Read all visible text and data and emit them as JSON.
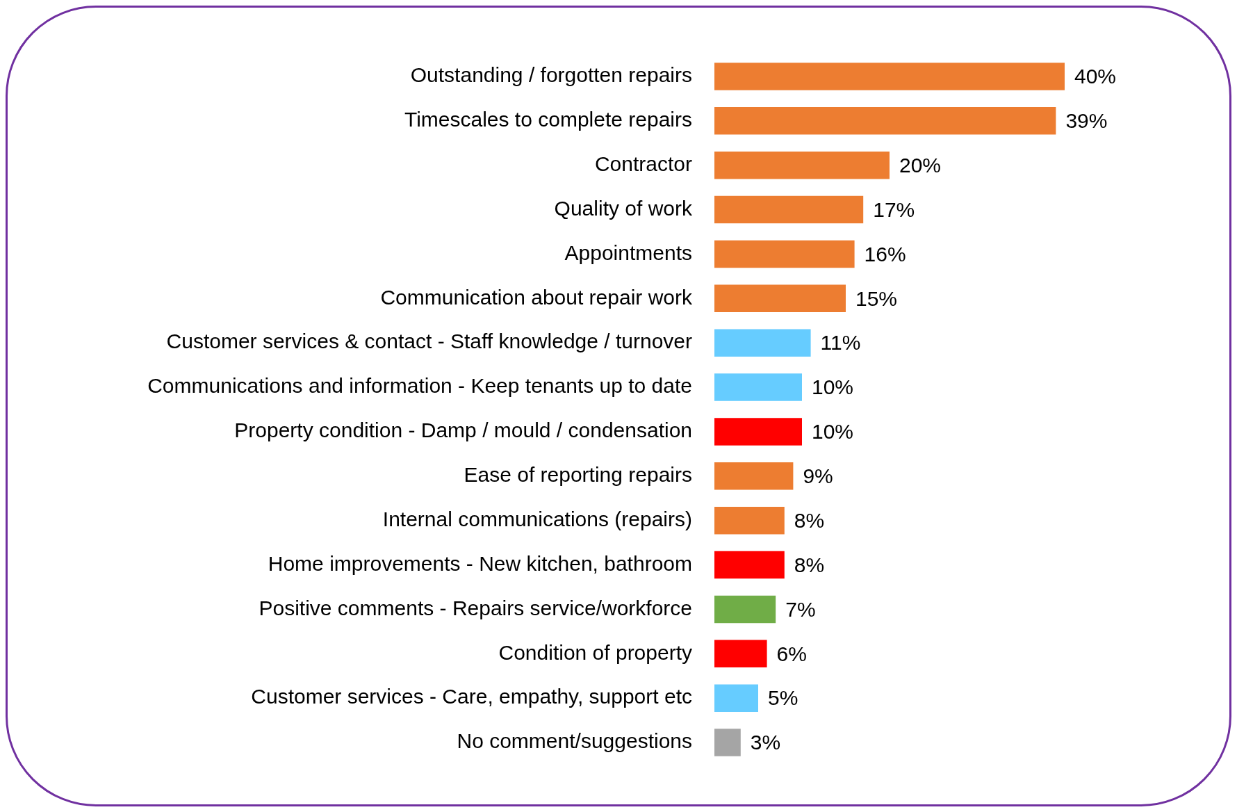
{
  "chart_data": {
    "type": "bar",
    "orientation": "horizontal",
    "categories": [
      "Outstanding / forgotten repairs",
      "Timescales to complete repairs",
      "Contractor",
      "Quality of work",
      "Appointments",
      "Communication about repair work",
      "Customer services & contact - Staff knowledge / turnover",
      "Communications and information - Keep tenants up to date",
      "Property condition - Damp / mould / condensation",
      "Ease of reporting repairs",
      "Internal communications (repairs)",
      "Home improvements - New kitchen, bathroom",
      "Positive comments - Repairs service/workforce",
      "Condition of property",
      "Customer services - Care, empathy, support etc",
      "No comment/suggestions"
    ],
    "values": [
      40,
      39,
      20,
      17,
      16,
      15,
      11,
      10,
      10,
      9,
      8,
      8,
      7,
      6,
      5,
      3
    ],
    "colors": [
      "#ed7d31",
      "#ed7d31",
      "#ed7d31",
      "#ed7d31",
      "#ed7d31",
      "#ed7d31",
      "#66ccff",
      "#66ccff",
      "#ff0000",
      "#ed7d31",
      "#ed7d31",
      "#ff0000",
      "#70ad47",
      "#ff0000",
      "#66ccff",
      "#a5a5a5"
    ],
    "value_labels": [
      "40%",
      "39%",
      "20%",
      "17%",
      "16%",
      "15%",
      "11%",
      "10%",
      "10%",
      "9%",
      "8%",
      "8%",
      "7%",
      "6%",
      "5%",
      "3%"
    ],
    "tick_labels": "y",
    "legend": false
  }
}
